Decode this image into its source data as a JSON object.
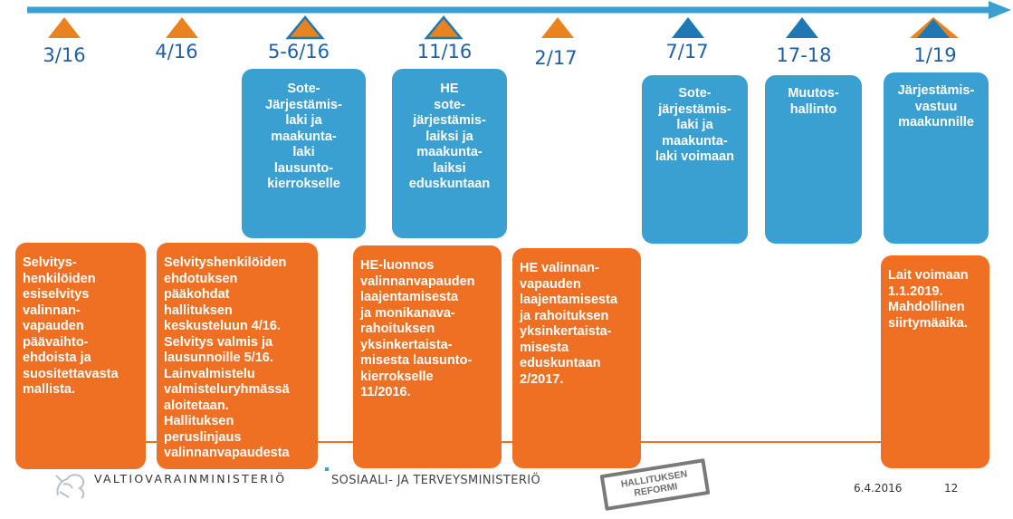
{
  "timeline": {
    "milestones": [
      {
        "label": "3/16",
        "marker": "orange"
      },
      {
        "label": "4/16",
        "marker": "orange"
      },
      {
        "label": "5-6/16",
        "marker": "orange-blue-outline"
      },
      {
        "label": "11/16",
        "marker": "orange-blue-outline"
      },
      {
        "label": "2/17",
        "marker": "orange"
      },
      {
        "label": "7/17",
        "marker": "blue"
      },
      {
        "label": "17-18",
        "marker": "blue"
      },
      {
        "label": "1/19",
        "marker": "orange-blue"
      }
    ]
  },
  "blue_boxes": [
    {
      "lines": [
        "Sote-",
        "Järjestämis-",
        "laki ja",
        "maakunta-",
        "laki",
        "lausunto-",
        "kierrokselle"
      ]
    },
    {
      "lines": [
        "HE",
        "sote-",
        "järjestämis-",
        "laiksi ja",
        "maakunta-",
        "laiksi",
        "eduskuntaan"
      ]
    },
    {
      "lines": [
        "Sote-",
        "järjestämis-",
        "laki ja",
        "maakunta-",
        "laki voimaan"
      ]
    },
    {
      "lines": [
        "Muutos-",
        "hallinto"
      ]
    },
    {
      "lines": [
        "Järjestämis-",
        "vastuu",
        "maakunnille"
      ]
    }
  ],
  "orange_boxes": [
    {
      "lines": [
        "Selvitys-",
        "henkilöiden",
        "esiselvitys",
        "valinnan-",
        "vapauden",
        "päävaihto-",
        "ehdoista ja",
        "suositettavasta",
        "mallista."
      ]
    },
    {
      "lines": [
        "Selvityshenkilöiden",
        "ehdotuksen",
        "pääkohdat",
        "hallituksen",
        "keskusteluun 4/16.",
        "Selvitys valmis  ja",
        "lausunnoille 5/16.",
        "Lainvalmistelu",
        "valmisteluryhmässä",
        "aloitetaan.",
        "Hallituksen",
        "peruslinjaus",
        "valinnanvapaudesta"
      ]
    },
    {
      "lines": [
        "HE-luonnos",
        "valinnanvapauden",
        "laajentamisesta",
        "ja monikanava-",
        "rahoituksen",
        "yksinkertaista-",
        "misesta lausunto-",
        "kierrokselle",
        "11/2016."
      ]
    },
    {
      "lines": [
        "HE valinnan-",
        "vapauden",
        "laajentamisesta",
        "ja rahoituksen",
        "yksinkertaista-",
        "misesta",
        "eduskuntaan",
        "2/2017."
      ]
    },
    {
      "lines": [
        "Lait voimaan",
        "1.1.2019.",
        "Mahdollinen",
        "siirtymäaika."
      ]
    }
  ],
  "footer": {
    "ministry1": "VALTIOVARAINMINISTERIÖ",
    "ministry2": "SOSIAALI- JA TERVEYSMINISTERIÖ",
    "stamp_line1": "HALLITUKSEN",
    "stamp_line2": "REFORMI",
    "date": "6.4.2016",
    "page": "12"
  },
  "colors": {
    "arrow": "#3aa0d2",
    "orange": "#f07023",
    "orange_marker": "#e88320",
    "blue_box": "#3aa0d2",
    "blue_marker": "#1e78b4",
    "label": "#1f5fa8"
  }
}
